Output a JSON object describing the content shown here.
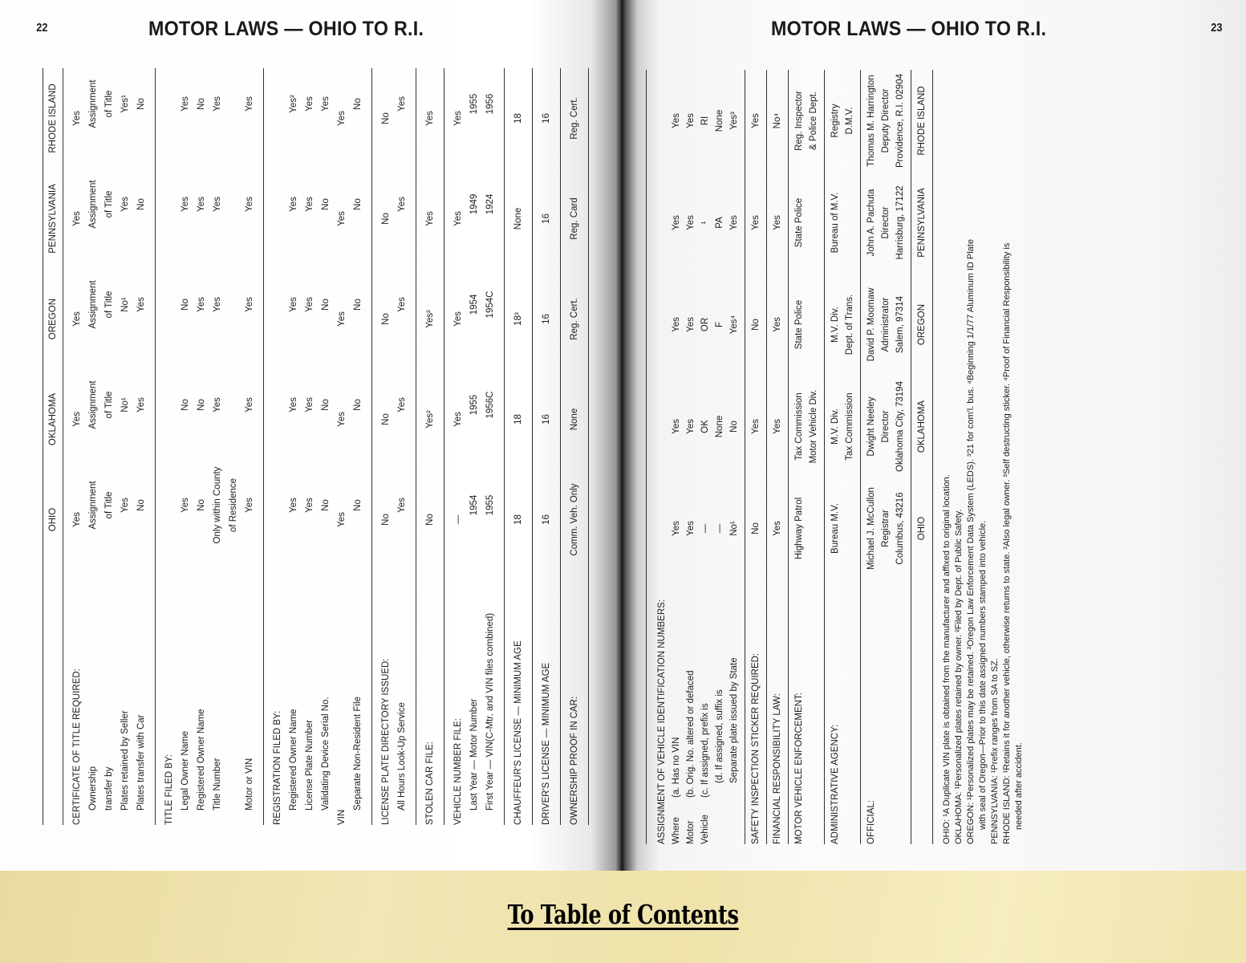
{
  "left_page": {
    "page_number": "22",
    "running_head": "MOTOR LAWS — OHIO TO R.I.",
    "columns": [
      "OHIO",
      "OKLAHOMA",
      "OREGON",
      "PENNSYLVANIA",
      "RHODE ISLAND"
    ],
    "sections": [
      {
        "rows": [
          {
            "label": "CERTIFICATE OF TITLE REQUIRED:",
            "values": [
              "Yes",
              "Yes",
              "Yes",
              "Yes",
              "Yes"
            ]
          },
          {
            "label": "Ownership",
            "values": [
              "Assignment",
              "Assignment",
              "Assignment",
              "Assignment",
              "Assignment"
            ]
          },
          {
            "label": "transfer by",
            "values": [
              "of Title",
              "of Title",
              "of Title",
              "of Title",
              "of Title"
            ]
          },
          {
            "label": "Plates retained by Seller",
            "values": [
              "Yes",
              "No¹",
              "No¹",
              "Yes",
              "Yes¹"
            ]
          },
          {
            "label": "Plates transfer with Car",
            "values": [
              "No",
              "Yes",
              "Yes",
              "No",
              "No"
            ]
          }
        ]
      },
      {
        "rows": [
          {
            "label": "TITLE FILED BY:",
            "values": [
              "",
              "",
              "",
              "",
              ""
            ]
          },
          {
            "label": "Legal Owner Name",
            "values": [
              "Yes",
              "No",
              "No",
              "Yes",
              "Yes"
            ]
          },
          {
            "label": "Registered Owner Name",
            "values": [
              "No",
              "No",
              "Yes",
              "Yes",
              "No"
            ]
          },
          {
            "label": "Title Number",
            "values": [
              "Only within County",
              "Yes",
              "Yes",
              "Yes",
              "Yes"
            ]
          },
          {
            "label": "",
            "values": [
              "of Residence",
              "",
              "",
              "",
              ""
            ]
          },
          {
            "label": "Motor or VIN",
            "values": [
              "Yes",
              "Yes",
              "Yes",
              "Yes",
              "Yes"
            ]
          }
        ]
      },
      {
        "rows": [
          {
            "label": "REGISTRATION FILED BY:",
            "values": [
              "",
              "",
              "",
              "",
              ""
            ]
          },
          {
            "label": "Registered Owner Name",
            "values": [
              "Yes",
              "Yes",
              "Yes",
              "Yes",
              "Yes²"
            ]
          },
          {
            "label": "License Plate Number",
            "values": [
              "Yes",
              "Yes",
              "Yes",
              "Yes",
              "Yes"
            ]
          },
          {
            "label": "Validating Device Serial No.",
            "values": [
              "No",
              "No",
              "No",
              "No",
              "Yes"
            ]
          },
          {
            "label": "VIN",
            "values": [
              "Yes",
              "Yes",
              "Yes",
              "Yes",
              "Yes"
            ]
          },
          {
            "label": "Separate Non-Resident File",
            "values": [
              "No",
              "No",
              "No",
              "No",
              "No"
            ]
          }
        ]
      },
      {
        "rows": [
          {
            "label": "LICENSE PLATE DIRECTORY ISSUED:",
            "values": [
              "No",
              "No",
              "No",
              "No",
              "No"
            ]
          },
          {
            "label": "All Hours Look-Up Service",
            "values": [
              "Yes",
              "Yes",
              "Yes",
              "Yes",
              "Yes"
            ]
          }
        ]
      },
      {
        "rows": [
          {
            "label": "STOLEN CAR FILE:",
            "values": [
              "No",
              "Yes²",
              "Yes²",
              "Yes",
              "Yes"
            ]
          }
        ]
      },
      {
        "rows": [
          {
            "label": "VEHICLE NUMBER FILE:",
            "values": [
              "—",
              "Yes",
              "Yes",
              "Yes",
              "Yes"
            ]
          },
          {
            "label": "Last Year — Motor Number",
            "values": [
              "1954",
              "1955",
              "1954",
              "1949",
              "1955"
            ]
          },
          {
            "label": "First Year — VIN(C-Mtr. and VIN files combined)",
            "values": [
              "1955",
              "1956C",
              "1954C",
              "1924",
              "1956"
            ]
          }
        ]
      },
      {
        "rows": [
          {
            "label": "CHAUFFEUR'S LICENSE — MINIMUM AGE",
            "values": [
              "18",
              "18",
              "18³",
              "None",
              "18"
            ]
          }
        ]
      },
      {
        "rows": [
          {
            "label": "DRIVER'S LICENSE — MINIMUM AGE",
            "values": [
              "16",
              "16",
              "16",
              "16",
              "16"
            ]
          }
        ]
      },
      {
        "rows": [
          {
            "label": "OWNERSHIP PROOF IN CAR:",
            "values": [
              "Comm. Veh. Only",
              "None",
              "Reg. Cert.",
              "Reg. Card",
              "Reg. Cert."
            ]
          }
        ]
      }
    ]
  },
  "right_page": {
    "page_number": "23",
    "running_head": "MOTOR LAWS — OHIO TO R.I.",
    "sections": [
      {
        "rows": [
          {
            "prefix": "",
            "label": "ASSIGNMENT OF VEHICLE IDENTIFICATION NUMBERS:",
            "values": [
              "",
              "",
              "",
              "",
              ""
            ]
          },
          {
            "prefix": "Where",
            "label": "(a. Has no VIN",
            "values": [
              "Yes",
              "Yes",
              "Yes",
              "Yes",
              "Yes"
            ]
          },
          {
            "prefix": "Motor",
            "label": "(b. Orig. No. altered or defaced",
            "values": [
              "Yes",
              "Yes",
              "Yes",
              "Yes",
              "Yes"
            ]
          },
          {
            "prefix": "Vehicle",
            "label": "(c. If assigned, prefix is",
            "values": [
              "—",
              "OK",
              "OR",
              "¹",
              "RI"
            ]
          },
          {
            "prefix": "",
            "label": "(d. If assigned, suffix is",
            "values": [
              "—",
              "None",
              "F",
              "PA",
              "None"
            ]
          },
          {
            "prefix": "",
            "label": "Separate plate issued by State",
            "values": [
              "No¹",
              "No",
              "Yes⁴",
              "Yes",
              "Yes³"
            ]
          }
        ]
      },
      {
        "rows": [
          {
            "prefix": "",
            "label": "SAFETY INSPECTION STICKER REQUIRED:",
            "values": [
              "No",
              "Yes",
              "No",
              "Yes",
              "Yes"
            ]
          }
        ]
      },
      {
        "rows": [
          {
            "prefix": "",
            "label": "FINANCIAL RESPONSIBILITY LAW:",
            "values": [
              "Yes",
              "Yes",
              "Yes",
              "Yes",
              "No⁴"
            ]
          }
        ]
      },
      {
        "rows": [
          {
            "prefix": "",
            "label": "MOTOR VEHICLE ENFORCEMENT:",
            "values": [
              "Highway Patrol",
              "Tax Commission",
              "State Police",
              "State Police",
              "Reg. Inspector"
            ]
          },
          {
            "prefix": "",
            "label": "",
            "values": [
              "",
              "Motor Vehicle Div.",
              "",
              "",
              "& Police Dept."
            ]
          }
        ]
      },
      {
        "rows": [
          {
            "prefix": "",
            "label": "ADMINISTRATIVE AGENCY:",
            "values": [
              "Bureau M.V.",
              "M.V. Div.",
              "M.V. Div.",
              "Bureau of M.V.",
              "Registry"
            ]
          },
          {
            "prefix": "",
            "label": "",
            "values": [
              "",
              "Tax Commission",
              "Dept. of Trans.",
              "",
              "D.M.V."
            ]
          }
        ]
      },
      {
        "rows": [
          {
            "prefix": "",
            "label": "OFFICIAL:",
            "values": [
              "Michael J. McCullon",
              "Dwight Neeley",
              "David P. Moomaw",
              "John A. Pachuta",
              "Thomas M. Harrington"
            ]
          },
          {
            "prefix": "",
            "label": "",
            "values": [
              "Registrar",
              "Director",
              "Administrator",
              "Director",
              "Deputy Director"
            ]
          },
          {
            "prefix": "",
            "label": "",
            "values": [
              "Columbus, 43216",
              "Oklahoma City, 73194",
              "Salem, 97314",
              "Harrisburg, 17122",
              "Providence, R.I. 02904"
            ]
          }
        ]
      },
      {
        "rows": [
          {
            "prefix": "",
            "label": "",
            "values": [
              "OHIO",
              "OKLAHOMA",
              "OREGON",
              "PENNSYLVANIA",
              "RHODE ISLAND"
            ]
          }
        ]
      }
    ],
    "footnotes": [
      "OHIO: ¹A Duplicate VIN plate is obtained from the manufacturer and affixed to original location.",
      "OKLAHOMA: ¹Personalized plates retained by owner. ²Filed by Dept. of Public Safety.",
      "OREGON: ¹Personalized plates may be retained. ²Oregon Law Enforcement Data System (LEDS). ³21 for com'l. bus. ⁴Beginning 1/1/77 Aluminum ID Plate",
      "with seal of Oregon—Prior to this date assigned numbers stamped into vehicle.",
      "PENNSYLVANIA: ¹Prefix ranges from SA to SZ.",
      "RHODE ISLAND: ¹Retains it for another vehicle, otherwise returns to state. ²Also legal owner. ³Self destructing sticker. ⁴Proof of Financial Responsibility is",
      "needed after accident."
    ]
  },
  "navigation": {
    "toc_link": "To Table of Contents"
  },
  "colors": {
    "banner": "#efe3ab",
    "ink": "#1a1a1a"
  }
}
